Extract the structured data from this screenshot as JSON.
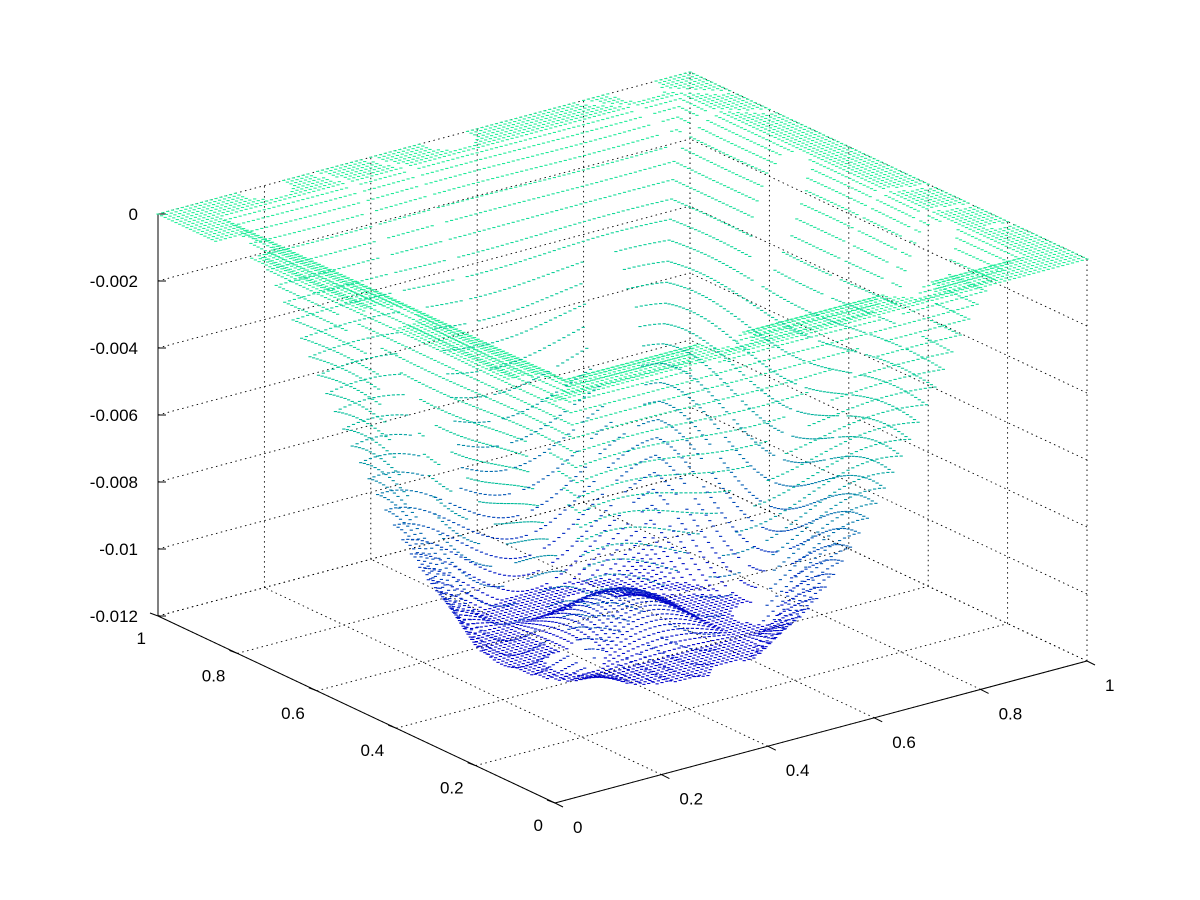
{
  "chart_data": {
    "type": "surface3d",
    "title": "",
    "xlabel": "",
    "ylabel": "",
    "zlabel": "",
    "xlim": [
      0,
      1
    ],
    "ylim": [
      0,
      1
    ],
    "zlim": [
      -0.012,
      0
    ],
    "x_ticks": [
      0,
      0.2,
      0.4,
      0.6,
      0.8,
      1
    ],
    "y_ticks": [
      0,
      0.2,
      0.4,
      0.6,
      0.8,
      1
    ],
    "z_ticks": [
      0,
      -0.002,
      -0.004,
      -0.006,
      -0.008,
      -0.01,
      -0.012
    ],
    "x_tick_labels": [
      "0",
      "0.2",
      "0.4",
      "0.6",
      "0.8",
      "1"
    ],
    "y_tick_labels": [
      "0",
      "0.2",
      "0.4",
      "0.6",
      "0.8",
      "1"
    ],
    "z_tick_labels": [
      "0",
      "-0.002",
      "-0.004",
      "-0.006",
      "-0.008",
      "-0.01",
      "-0.012"
    ],
    "grid": true,
    "surface": {
      "boundary_value": 0,
      "minimum_value": -0.0118,
      "rendering": "scattered mesh points",
      "colormap": [
        "#0000cc",
        "#00bb99",
        "#22ee99"
      ]
    }
  }
}
